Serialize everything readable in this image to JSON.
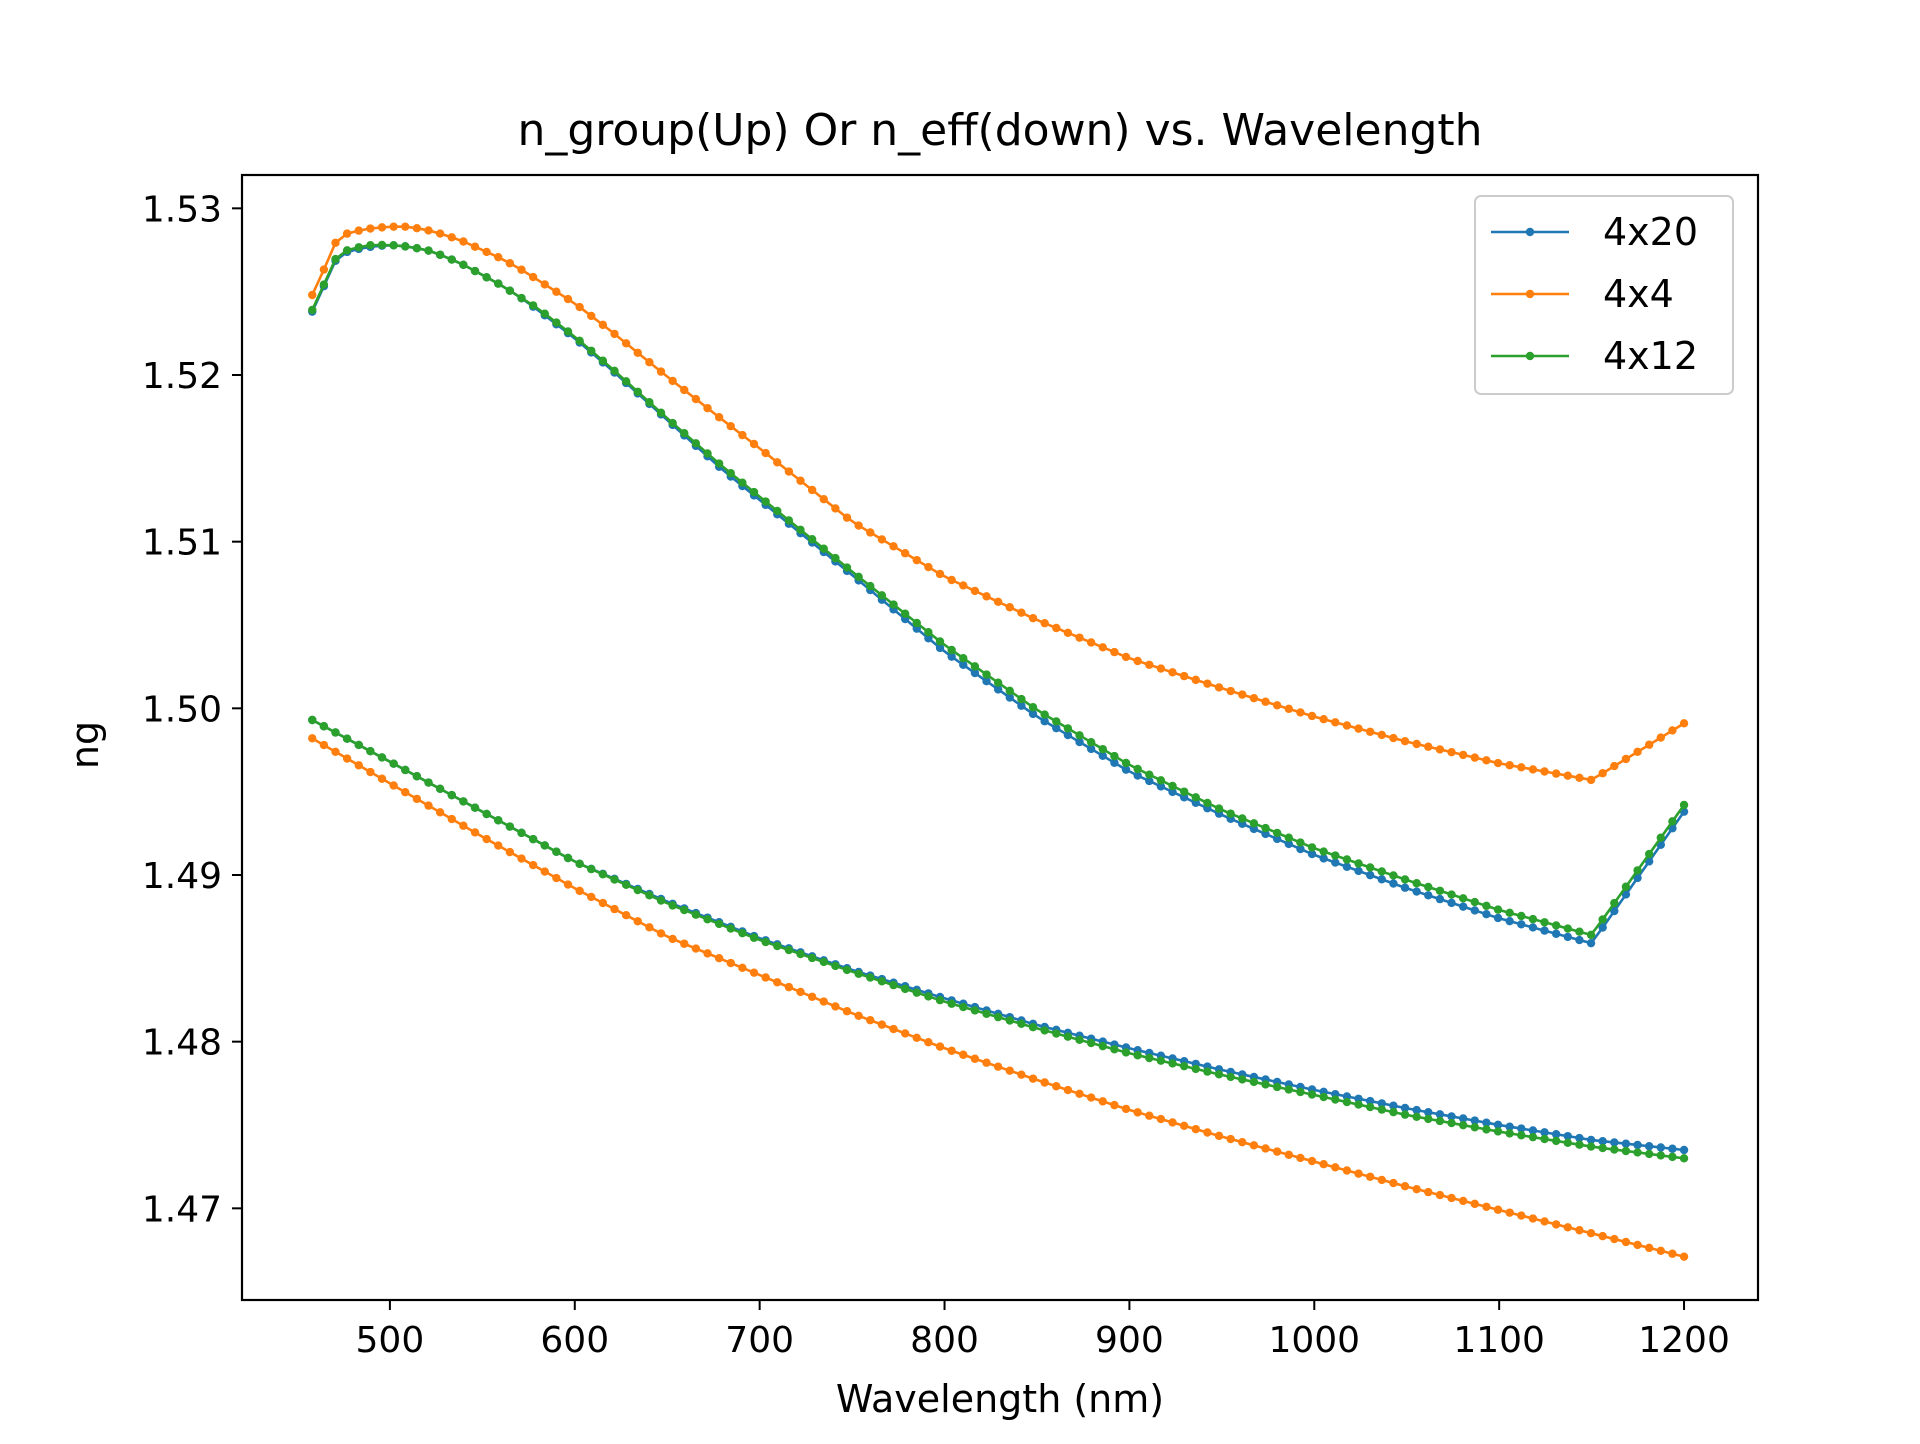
{
  "chart_data": {
    "type": "line",
    "title": "n_group(Up) Or n_eff(down) vs. Wavelength",
    "xlabel": "Wavelength (nm)",
    "ylabel": "ng",
    "xlim": [
      420,
      1240
    ],
    "ylim": [
      1.4645,
      1.532
    ],
    "xticks": [
      500,
      600,
      700,
      800,
      900,
      1000,
      1100,
      1200
    ],
    "xtick_labels": [
      "500",
      "600",
      "700",
      "800",
      "900",
      "1000",
      "1100",
      "1200"
    ],
    "yticks": [
      1.47,
      1.48,
      1.49,
      1.5,
      1.51,
      1.52,
      1.53
    ],
    "ytick_labels": [
      "1.47",
      "1.48",
      "1.49",
      "1.50",
      "1.51",
      "1.52",
      "1.53"
    ],
    "grid": false,
    "legend_position": "top-right",
    "marker": "dot",
    "series": [
      {
        "name": "4x20",
        "color": "#1f77b4",
        "group": {
          "x": [
            458,
            465,
            472,
            480,
            490,
            500,
            510,
            520,
            530,
            540,
            550,
            560,
            570,
            580,
            600,
            620,
            650,
            680,
            700,
            750,
            800,
            850,
            900,
            950,
            1000,
            1050,
            1100,
            1150,
            1200
          ],
          "y": [
            1.5238,
            1.5255,
            1.5272,
            1.5275,
            1.5277,
            1.5278,
            1.5277,
            1.5275,
            1.5271,
            1.5266,
            1.526,
            1.5254,
            1.5247,
            1.5239,
            1.5222,
            1.5203,
            1.5173,
            1.5143,
            1.5125,
            1.508,
            1.5034,
            1.4995,
            1.4962,
            1.4936,
            1.4912,
            1.4892,
            1.4874,
            1.4859,
            1.4938
          ]
        },
        "eff": {
          "x": [
            458,
            500,
            550,
            600,
            650,
            700,
            750,
            800,
            850,
            900,
            950,
            1000,
            1050,
            1100,
            1150,
            1200
          ],
          "y": [
            1.4993,
            1.4968,
            1.4938,
            1.4908,
            1.4884,
            1.4862,
            1.4843,
            1.4826,
            1.481,
            1.4796,
            1.4783,
            1.4771,
            1.476,
            1.475,
            1.4741,
            1.4735
          ]
        }
      },
      {
        "name": "4x4",
        "color": "#ff7f0e",
        "group": {
          "x": [
            458,
            465,
            472,
            480,
            490,
            500,
            510,
            520,
            530,
            540,
            550,
            560,
            570,
            580,
            600,
            620,
            650,
            680,
            700,
            750,
            800,
            850,
            900,
            950,
            1000,
            1050,
            1100,
            1150,
            1200
          ],
          "y": [
            1.5248,
            1.5265,
            1.5283,
            1.5286,
            1.5288,
            1.5289,
            1.5289,
            1.5287,
            1.5284,
            1.528,
            1.5275,
            1.527,
            1.5264,
            1.5257,
            1.5243,
            1.5226,
            1.5199,
            1.5173,
            1.5156,
            1.5112,
            1.5079,
            1.5053,
            1.503,
            1.5012,
            1.4995,
            1.498,
            1.4967,
            1.4957,
            1.4991
          ]
        },
        "eff": {
          "x": [
            458,
            500,
            550,
            600,
            650,
            700,
            750,
            800,
            850,
            900,
            950,
            1000,
            1050,
            1100,
            1150,
            1200
          ],
          "y": [
            1.4982,
            1.4955,
            1.4923,
            1.4892,
            1.4863,
            1.484,
            1.4817,
            1.4796,
            1.4777,
            1.4759,
            1.4743,
            1.4728,
            1.4713,
            1.4699,
            1.4685,
            1.4671
          ]
        }
      },
      {
        "name": "4x12",
        "color": "#2ca02c",
        "group": {
          "x": [
            458,
            465,
            472,
            480,
            490,
            500,
            510,
            520,
            530,
            540,
            550,
            560,
            570,
            580,
            600,
            620,
            650,
            680,
            700,
            750,
            800,
            850,
            900,
            950,
            1000,
            1050,
            1100,
            1150,
            1200
          ],
          "y": [
            1.5239,
            1.5256,
            1.5273,
            1.5276,
            1.5278,
            1.5278,
            1.5277,
            1.5275,
            1.5271,
            1.5266,
            1.526,
            1.5254,
            1.5247,
            1.524,
            1.5223,
            1.5204,
            1.5174,
            1.5145,
            1.5127,
            1.5082,
            1.5038,
            1.4999,
            1.4966,
            1.4939,
            1.4916,
            1.4897,
            1.4879,
            1.4864,
            1.4942
          ]
        },
        "eff": {
          "x": [
            458,
            500,
            550,
            600,
            650,
            700,
            750,
            800,
            850,
            900,
            950,
            1000,
            1050,
            1100,
            1150,
            1200
          ],
          "y": [
            1.4993,
            1.4968,
            1.4938,
            1.4908,
            1.4883,
            1.4861,
            1.4842,
            1.4824,
            1.4808,
            1.4793,
            1.478,
            1.4768,
            1.4756,
            1.4746,
            1.4737,
            1.473
          ]
        }
      }
    ]
  }
}
